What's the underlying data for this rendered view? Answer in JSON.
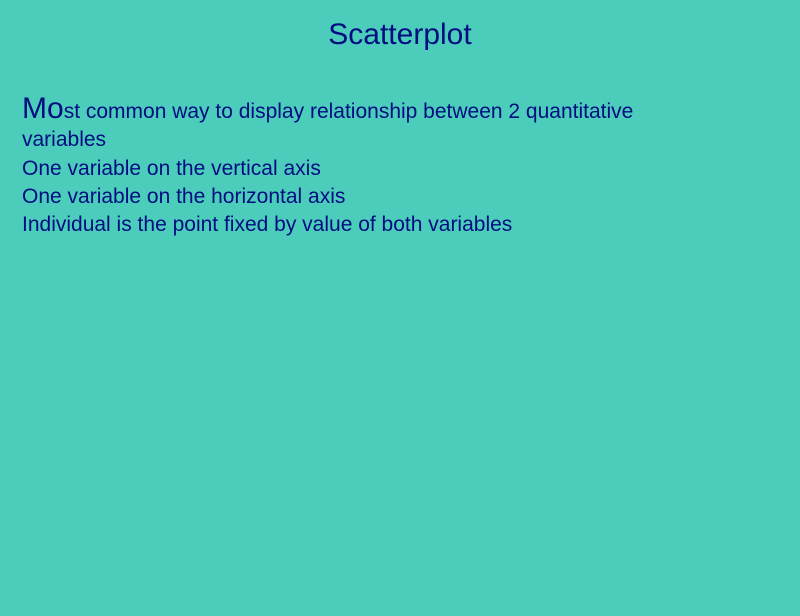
{
  "slide": {
    "title": "Scatterplot",
    "body": {
      "lead_caps": "Mo",
      "line1_rest": "st common way to display relationship between 2 quantitative",
      "line2": "variables",
      "line3": "One variable on the vertical axis",
      "line4": "One variable on the horizontal axis",
      "line5": "Individual is the point fixed by value of both variables"
    },
    "colors": {
      "background": "#4cccbb",
      "text": "#000d80"
    },
    "typography": {
      "title_fontsize": 30,
      "body_fontsize": 21,
      "lead_caps_fontsize": 30,
      "font_family": "Arial"
    }
  }
}
